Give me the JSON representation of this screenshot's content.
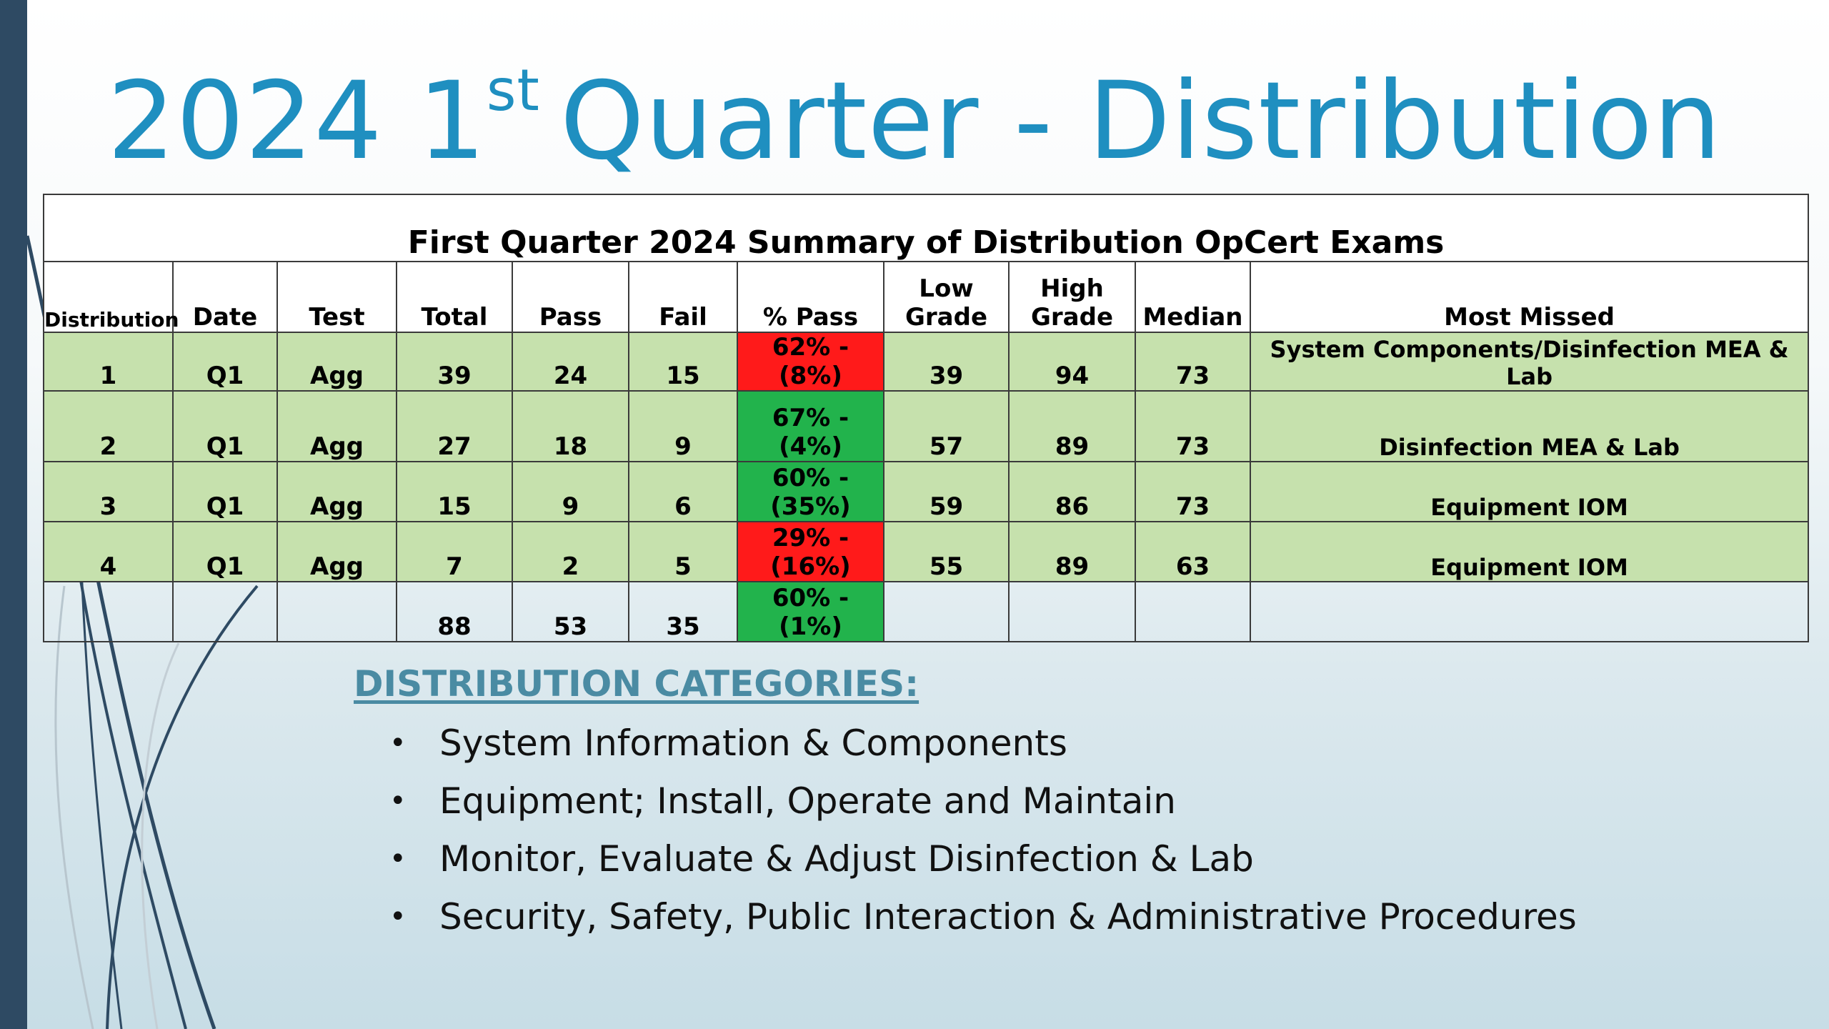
{
  "title": {
    "main": "2024 1",
    "sup": "st",
    "rest": "Quarter - Distribution"
  },
  "table": {
    "caption": "First Quarter 2024 Summary of Distribution OpCert Exams",
    "headers": [
      "Distribution",
      "Date",
      "Test",
      "Total",
      "Pass",
      "Fail",
      "% Pass",
      "Low Grade",
      "High Grade",
      "Median",
      "Most Missed"
    ],
    "rows": [
      {
        "distribution": "1",
        "date": "Q1",
        "test": "Agg",
        "total": "39",
        "pass": "24",
        "fail": "15",
        "pct_pass": "62% - (8%)",
        "pct_status": "red",
        "low": "39",
        "high": "94",
        "median": "73",
        "most_missed": "System Components/Disinfection MEA & Lab"
      },
      {
        "distribution": "2",
        "date": "Q1",
        "test": "Agg",
        "total": "27",
        "pass": "18",
        "fail": "9",
        "pct_pass": "67% - (4%)",
        "pct_status": "green",
        "low": "57",
        "high": "89",
        "median": "73",
        "most_missed": "Disinfection MEA & Lab"
      },
      {
        "distribution": "3",
        "date": "Q1",
        "test": "Agg",
        "total": "15",
        "pass": "9",
        "fail": "6",
        "pct_pass": "60% - (35%)",
        "pct_status": "green",
        "low": "59",
        "high": "86",
        "median": "73",
        "most_missed": "Equipment IOM"
      },
      {
        "distribution": "4",
        "date": "Q1",
        "test": "Agg",
        "total": "7",
        "pass": "2",
        "fail": "5",
        "pct_pass": "29% - (16%)",
        "pct_status": "red",
        "low": "55",
        "high": "89",
        "median": "63",
        "most_missed": "Equipment IOM"
      }
    ],
    "totals": {
      "total": "88",
      "pass": "53",
      "fail": "35",
      "pct_pass": "60% - (1%)",
      "pct_status": "green"
    }
  },
  "categories": {
    "heading": "DISTRIBUTION CATEGORIES:",
    "items": [
      "System Information & Components",
      "Equipment; Install, Operate and Maintain",
      "Monitor, Evaluate & Adjust Disinfection & Lab",
      "Security, Safety, Public Interaction & Administrative Procedures"
    ]
  },
  "colors": {
    "title": "#1f8fc0",
    "row_fill": "#c6e1ad",
    "status_red": "#ff1a1a",
    "status_green": "#22b34c",
    "left_bar": "#2e4a63",
    "category_heading": "#4a8ba3"
  }
}
